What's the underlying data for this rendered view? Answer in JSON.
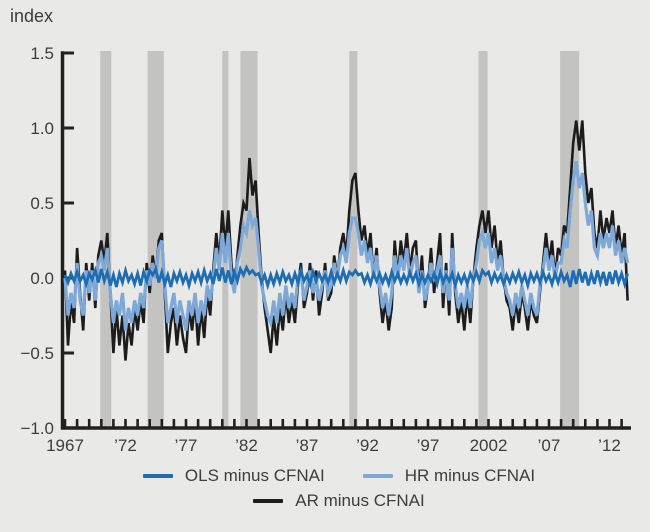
{
  "chart_data": {
    "type": "line",
    "title": "",
    "ylabel_unit": "index",
    "xlabel": "",
    "ylim": [
      -1.0,
      1.5
    ],
    "xlim": [
      1967,
      2013.5
    ],
    "grid": false,
    "legend_position": "bottom",
    "x_start": 1967.0,
    "x_step": 0.25,
    "y_ticks": [
      {
        "value": 1.5,
        "label": "1.5"
      },
      {
        "value": 1.0,
        "label": "1.0"
      },
      {
        "value": 0.5,
        "label": "0.5"
      },
      {
        "value": 0.0,
        "label": "0.0"
      },
      {
        "value": -0.5,
        "label": "−0.5"
      },
      {
        "value": -1.0,
        "label": "−1.0"
      }
    ],
    "x_minor_ticks": {
      "start": 1967,
      "end": 2013,
      "step": 1
    },
    "x_tick_labels": [
      {
        "year": 1967,
        "label": "1967"
      },
      {
        "year": 1972,
        "label": "’72"
      },
      {
        "year": 1977,
        "label": "’77"
      },
      {
        "year": 1982,
        "label": "’82"
      },
      {
        "year": 1987,
        "label": "’87"
      },
      {
        "year": 1992,
        "label": "’92"
      },
      {
        "year": 1997,
        "label": "’97"
      },
      {
        "year": 2002,
        "label": "2002"
      },
      {
        "year": 2007,
        "label": "’07"
      },
      {
        "year": 2012,
        "label": "’12"
      }
    ],
    "recession_bands": [
      [
        1969.92,
        1970.83
      ],
      [
        1973.83,
        1975.17
      ],
      [
        1980.0,
        1980.5
      ],
      [
        1981.5,
        1982.92
      ],
      [
        1990.5,
        1991.17
      ],
      [
        2001.17,
        2001.92
      ],
      [
        2007.92,
        2009.5
      ]
    ],
    "colors": {
      "background": "#e9e9e8",
      "recession_band": "#c3c3c2",
      "axis": "#231f20",
      "text": "#3d3d3f",
      "ols_line": "#1e6db2",
      "hr_line": "#7da8d8",
      "ar_line": "#1c1c1c"
    },
    "series": [
      {
        "name": "AR minus CFNAI",
        "color": "#1c1c1c",
        "values": [
          0.05,
          -0.45,
          -0.15,
          -0.3,
          0.2,
          -0.1,
          -0.35,
          0.1,
          -0.15,
          0.1,
          -0.2,
          0.15,
          0.25,
          0.1,
          0.3,
          -0.1,
          -0.5,
          -0.2,
          -0.45,
          -0.25,
          -0.55,
          -0.3,
          -0.45,
          -0.2,
          -0.35,
          -0.15,
          -0.3,
          0.1,
          -0.1,
          0.15,
          0,
          0.25,
          0.3,
          -0.1,
          -0.5,
          -0.3,
          -0.2,
          -0.45,
          -0.25,
          -0.4,
          -0.5,
          -0.2,
          -0.35,
          -0.15,
          -0.45,
          -0.2,
          -0.4,
          -0.1,
          -0.25,
          0.05,
          0.3,
          0.1,
          0.45,
          0.2,
          0.45,
          0.1,
          -0.1,
          0.15,
          0.35,
          0.5,
          0.45,
          0.8,
          0.55,
          0.65,
          0.3,
          0,
          -0.2,
          -0.35,
          -0.5,
          -0.25,
          -0.45,
          -0.2,
          -0.35,
          -0.1,
          -0.3,
          -0.15,
          -0.3,
          -0.05,
          0.1,
          -0.2,
          -0.1,
          0.1,
          -0.15,
          0.05,
          -0.25,
          -0.1,
          0.1,
          -0.15,
          -0.1,
          0.15,
          0,
          0.2,
          0.3,
          0.15,
          0.45,
          0.65,
          0.7,
          0.45,
          0.25,
          0.35,
          0.15,
          0.3,
          0,
          0.2,
          -0.1,
          -0.3,
          -0.15,
          -0.35,
          -0.2,
          0.25,
          0,
          0.25,
          0.1,
          0.3,
          0.05,
          0.2,
          0.25,
          -0.1,
          0.15,
          -0.2,
          -0.05,
          0.2,
          -0.1,
          0.1,
          0.3,
          -0.2,
          0.1,
          -0.25,
          0.3,
          -0.1,
          -0.3,
          -0.15,
          -0.35,
          -0.1,
          -0.3,
          0,
          0.2,
          0.35,
          0.45,
          0.3,
          0.45,
          0.2,
          0.35,
          0.1,
          0.25,
          0,
          -0.15,
          -0.2,
          -0.35,
          -0.15,
          -0.3,
          -0.1,
          -0.2,
          -0.35,
          -0.15,
          -0.25,
          -0.3,
          -0.1,
          0.1,
          0.3,
          0.1,
          0.25,
          0,
          0.2,
          0.15,
          0.35,
          0.3,
          0.6,
          0.9,
          1.05,
          0.85,
          1.05,
          0.7,
          0.5,
          0.6,
          0.3,
          0.2,
          0.45,
          0.25,
          0.4,
          0.3,
          0.45,
          0.2,
          0.35,
          0.15,
          0.3,
          -0.15
        ]
      },
      {
        "name": "HR minus CFNAI",
        "color": "#7da8d8",
        "values": [
          0,
          -0.25,
          -0.1,
          -0.2,
          0.1,
          -0.15,
          -0.25,
          0.05,
          -0.1,
          0.05,
          -0.15,
          0.1,
          0.15,
          0.05,
          0.2,
          -0.1,
          -0.3,
          -0.15,
          -0.25,
          -0.1,
          -0.35,
          -0.2,
          -0.3,
          -0.15,
          -0.25,
          -0.1,
          -0.2,
          0.05,
          -0.05,
          0.1,
          0,
          0.2,
          0.25,
          -0.05,
          -0.3,
          -0.2,
          -0.1,
          -0.3,
          -0.15,
          -0.25,
          -0.35,
          -0.15,
          -0.25,
          -0.1,
          -0.3,
          -0.15,
          -0.25,
          -0.05,
          -0.15,
          0,
          0.2,
          0.05,
          0.3,
          0.1,
          0.3,
          0,
          -0.1,
          0.1,
          0.2,
          0.35,
          0.3,
          0.45,
          0.35,
          0.4,
          0.2,
          -0.05,
          -0.15,
          -0.25,
          -0.3,
          -0.15,
          -0.3,
          -0.1,
          -0.25,
          -0.05,
          -0.2,
          -0.1,
          -0.2,
          0,
          0.05,
          -0.15,
          -0.05,
          0.05,
          -0.1,
          0,
          -0.15,
          -0.05,
          0.05,
          -0.1,
          -0.05,
          0.1,
          0,
          0.15,
          0.2,
          0.1,
          0.3,
          0.4,
          0.4,
          0.3,
          0.15,
          0.25,
          0.1,
          0.2,
          0,
          0.15,
          -0.05,
          -0.2,
          -0.1,
          -0.25,
          -0.1,
          0.15,
          0,
          0.15,
          0.05,
          0.2,
          0,
          0.1,
          0.15,
          -0.1,
          0.05,
          -0.15,
          -0.05,
          0.1,
          0,
          0.05,
          0.15,
          -0.1,
          0.05,
          -0.15,
          0.2,
          -0.05,
          -0.2,
          -0.1,
          -0.2,
          -0.05,
          -0.2,
          0,
          0.1,
          0.25,
          0.3,
          0.2,
          0.3,
          0.1,
          0.2,
          0.05,
          0.15,
          0,
          -0.1,
          -0.15,
          -0.25,
          -0.1,
          -0.2,
          -0.05,
          -0.15,
          -0.25,
          -0.1,
          -0.2,
          -0.25,
          -0.05,
          0.05,
          0.2,
          0.05,
          0.15,
          0,
          0.1,
          0.1,
          0.25,
          0.2,
          0.45,
          0.65,
          0.78,
          0.6,
          0.7,
          0.5,
          0.35,
          0.45,
          0.2,
          0.15,
          0.3,
          0.2,
          0.3,
          0.2,
          0.35,
          0.15,
          0.25,
          0.1,
          0.2,
          0.1
        ]
      },
      {
        "name": "OLS minus CFNAI",
        "color": "#1e6db2",
        "values": [
          0.02,
          -0.03,
          0.03,
          -0.02,
          0.04,
          -0.02,
          0.02,
          -0.04,
          0.03,
          -0.01,
          0.05,
          -0.03,
          0.06,
          -0.02,
          0.04,
          -0.05,
          0.02,
          -0.06,
          0.03,
          -0.03,
          0.05,
          -0.02,
          0.02,
          -0.04,
          0.03,
          -0.05,
          0.04,
          -0.02,
          0.05,
          0.02,
          0.06,
          -0.03,
          0.04,
          -0.04,
          0.02,
          -0.06,
          0.03,
          -0.02,
          0.04,
          -0.03,
          0.02,
          -0.05,
          0.03,
          -0.02,
          0.04,
          -0.03,
          0.05,
          -0.02,
          0.03,
          -0.04,
          0.06,
          -0.02,
          0.07,
          -0.03,
          0.05,
          -0.04,
          0.04,
          -0.02,
          0.06,
          0.02,
          0.07,
          0.03,
          0.05,
          0.02,
          0.03,
          -0.03,
          0.02,
          -0.05,
          0.02,
          -0.04,
          0.03,
          -0.03,
          0.04,
          -0.02,
          0.02,
          -0.04,
          0.03,
          -0.03,
          0.05,
          -0.02,
          0.02,
          -0.04,
          0.04,
          -0.02,
          0.03,
          -0.02,
          0.02,
          -0.03,
          0.04,
          -0.03,
          0.03,
          -0.02,
          0.05,
          -0.02,
          0.04,
          0.02,
          0.05,
          0.02,
          0.03,
          -0.03,
          0.02,
          -0.04,
          0.03,
          -0.02,
          0.03,
          -0.03,
          0.02,
          -0.04,
          0.04,
          -0.02,
          0.03,
          -0.03,
          0.02,
          -0.03,
          0.04,
          -0.02,
          0.03,
          -0.04,
          0.02,
          -0.03,
          0.02,
          -0.02,
          0.03,
          -0.04,
          0.04,
          -0.03,
          0.02,
          -0.02,
          0.03,
          -0.05,
          0.02,
          -0.03,
          0.02,
          -0.04,
          0.03,
          -0.02,
          0.04,
          -0.02,
          0.05,
          0.02,
          0.04,
          -0.03,
          0.03,
          -0.02,
          0.02,
          -0.04,
          0.02,
          -0.03,
          0.03,
          -0.02,
          0.04,
          -0.03,
          0.02,
          -0.05,
          0.03,
          -0.02,
          0.03,
          -0.03,
          0.04,
          -0.02,
          0.02,
          -0.04,
          0.03,
          -0.03,
          0.04,
          -0.02,
          0.02,
          -0.06,
          0.05,
          -0.04,
          0.06,
          -0.03,
          0.04,
          -0.05,
          0.03,
          -0.04,
          0.05,
          -0.03,
          0.04,
          -0.05,
          0.04,
          -0.04,
          0.05,
          -0.03,
          0.03,
          -0.04,
          0.03
        ]
      }
    ]
  },
  "legend": {
    "items": [
      {
        "label": "OLS minus CFNAI",
        "color": "#1e6db2"
      },
      {
        "label": "HR minus CFNAI",
        "color": "#7da8d8"
      },
      {
        "label": "AR minus CFNAI",
        "color": "#1c1c1c"
      }
    ]
  }
}
